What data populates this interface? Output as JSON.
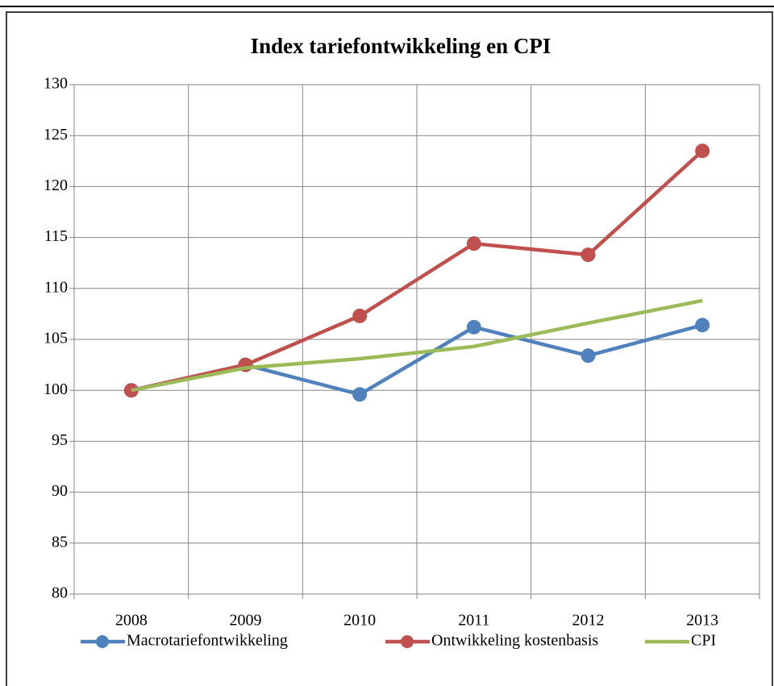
{
  "chart_data": {
    "type": "line",
    "title": "Index tariefontwikkeling en CPI",
    "categories": [
      "2008",
      "2009",
      "2010",
      "2011",
      "2012",
      "2013"
    ],
    "series": [
      {
        "name": "Macrotariefontwikkeling",
        "color": "#4f81bd",
        "markers": true,
        "values": [
          100,
          102.5,
          99.6,
          106.2,
          103.4,
          106.4
        ]
      },
      {
        "name": "Ontwikkeling kostenbasis",
        "color": "#c0504d",
        "markers": true,
        "values": [
          100,
          102.5,
          107.3,
          114.4,
          113.3,
          123.5
        ]
      },
      {
        "name": "CPI",
        "color": "#9bbb59",
        "markers": false,
        "values": [
          100,
          102.2,
          103.1,
          104.3,
          106.6,
          108.8
        ]
      }
    ],
    "ylim": [
      80,
      130
    ],
    "yticks": [
      80,
      85,
      90,
      95,
      100,
      105,
      110,
      115,
      120,
      125,
      130
    ],
    "grid": true,
    "legend": "bottom"
  }
}
